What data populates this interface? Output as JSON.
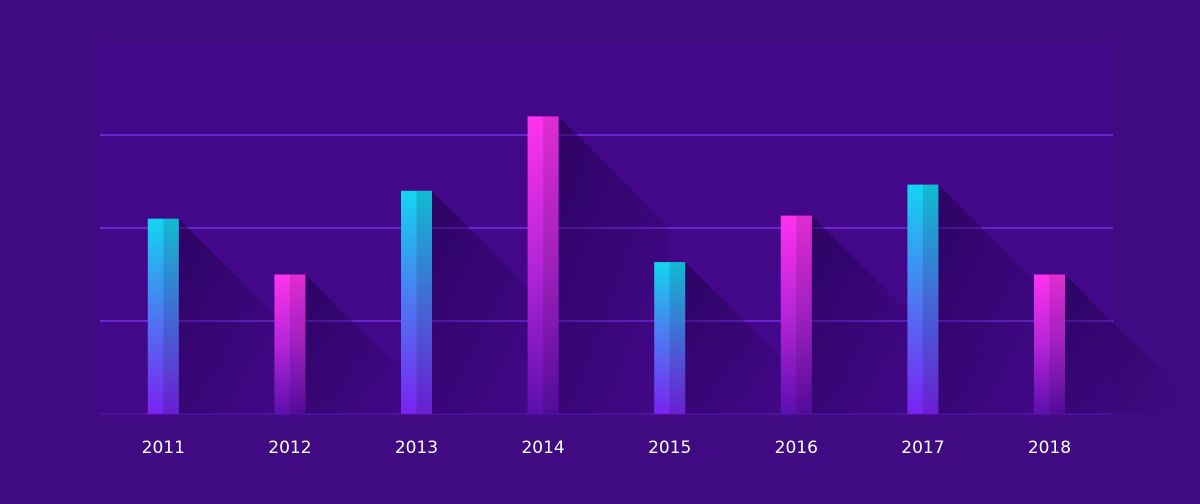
{
  "chart_data": {
    "type": "bar",
    "categories": [
      "2011",
      "2012",
      "2013",
      "2014",
      "2015",
      "2016",
      "2017",
      "2018"
    ],
    "values": [
      63,
      45,
      72,
      96,
      49,
      64,
      74,
      45
    ],
    "bar_styles": [
      "cyan",
      "magenta",
      "cyan",
      "magenta",
      "cyan",
      "magenta",
      "cyan",
      "magenta"
    ],
    "ylim": [
      0,
      100
    ],
    "grid": true,
    "legend": "none",
    "title": "",
    "xlabel": "",
    "ylabel": ""
  },
  "colors": {
    "background": "#3f0a82",
    "plot_background": "#43088a",
    "gridline": "#7a2ee6",
    "axis_text": "#ffffff",
    "cyan_top": "#12d6f0",
    "cyan_mid": "#4d78f2",
    "cyan_bottom": "#7a22f0",
    "magenta_top": "#ff33ee",
    "magenta_mid": "#b525d8",
    "magenta_bottom": "#5d0eae"
  }
}
